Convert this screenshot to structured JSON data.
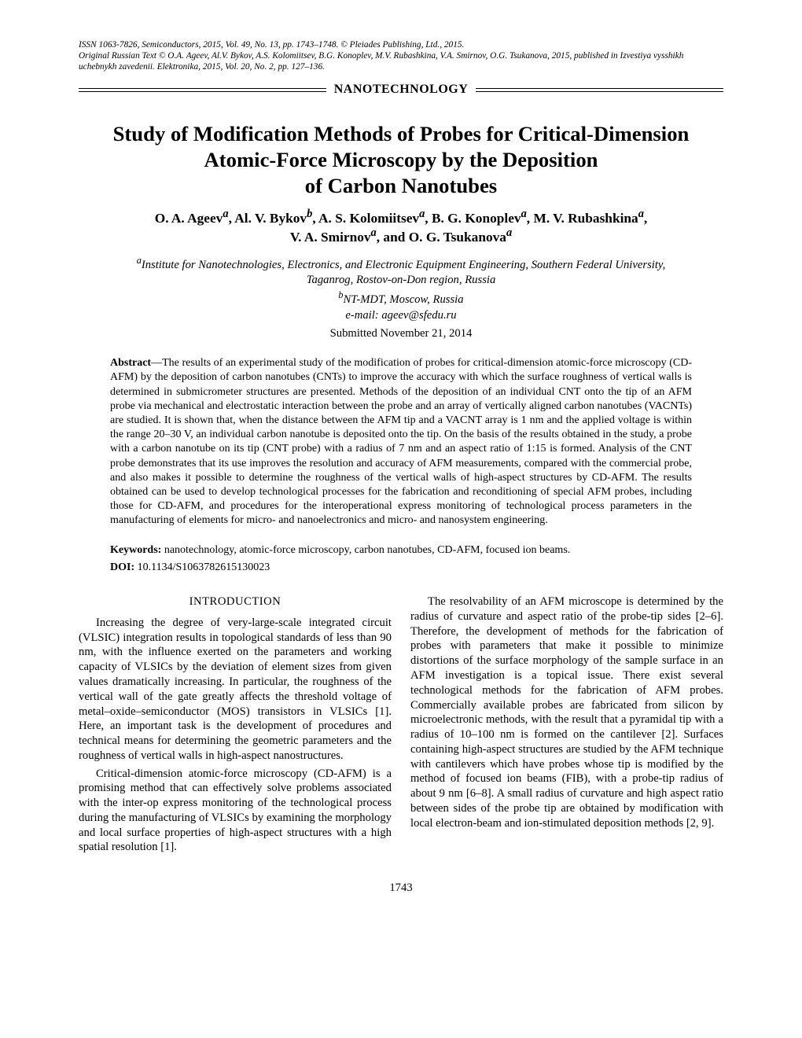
{
  "header": {
    "issn_line": "ISSN 1063-7826, Semiconductors, 2015, Vol. 49, No. 13, pp. 1743–1748. © Pleiades Publishing, Ltd., 2015.",
    "original_line": "Original Russian Text © O.A. Ageev, Al.V. Bykov, A.S. Kolomiitsev, B.G. Konoplev, M.V. Rubashkina, V.A. Smirnov, O.G. Tsukanova, 2015, published in Izvestiya vysshikh uchebnykh zavedenii. Elektronika, 2015, Vol. 20, No. 2, pp. 127–136.",
    "rubric": "NANOTECHNOLOGY"
  },
  "title_lines": {
    "l1": "Study of Modification Methods of Probes for Critical-Dimension",
    "l2": "Atomic-Force Microscopy by the Deposition",
    "l3": "of Carbon Nanotubes"
  },
  "authors_lines": {
    "a1_prefix": "O. A. Ageev",
    "a1_sup": "a",
    "a2_prefix": ", Al. V. Bykov",
    "a2_sup": "b",
    "a3_prefix": ", A. S. Kolomiitsev",
    "a3_sup": "a",
    "a4_prefix": ", B. G. Konoplev",
    "a4_sup": "a",
    "a5_prefix": ", M. V. Rubashkina",
    "a5_sup": "a",
    "a6_comma": ",",
    "a6_prefix": "V. A. Smirnov",
    "a6_sup": "a",
    "a7_prefix": ", and O. G. Tsukanova",
    "a7_sup": "a"
  },
  "affiliations": {
    "aff_a_sup": "a",
    "aff_a": "Institute for Nanotechnologies, Electronics, and Electronic Equipment Engineering, Southern Federal University,",
    "aff_a2": "Taganrog, Rostov-on-Don region, Russia",
    "aff_b_sup": "b",
    "aff_b": "NT-MDT, Moscow, Russia",
    "email": "e-mail: ageev@sfedu.ru",
    "submitted": "Submitted November 21, 2014"
  },
  "abstract": {
    "label": "Abstract",
    "text": "—The results of an experimental study of the modification of probes for critical-dimension atomic-force microscopy (CD-AFM) by the deposition of carbon nanotubes (CNTs) to improve the accuracy with which the surface roughness of vertical walls is determined in submicrometer structures are presented. Methods of the deposition of an individual CNT onto the tip of an AFM probe via mechanical and electrostatic interaction between the probe and an array of vertically aligned carbon nanotubes (VACNTs) are studied. It is shown that, when the distance between the AFM tip and a VACNT array is 1 nm and the applied voltage is within the range 20–30 V, an individual carbon nanotube is deposited onto the tip. On the basis of the results obtained in the study, a probe with a carbon nanotube on its tip (CNT probe) with a radius of 7 nm and an aspect ratio of 1:15 is formed. Analysis of the CNT probe demonstrates that its use improves the resolution and accuracy of AFM measurements, compared with the commercial probe, and also makes it possible to determine the roughness of the vertical walls of high-aspect structures by CD-AFM. The results obtained can be used to develop technological processes for the fabrication and reconditioning of special AFM probes, including those for CD-AFM, and procedures for the interoperational express monitoring of technological process parameters in the manufacturing of elements for micro- and nanoelectronics and micro- and nanosystem engineering."
  },
  "keywords": {
    "label": "Keywords:",
    "text": " nanotechnology, atomic-force microscopy, carbon nanotubes, CD-AFM, focused ion beams."
  },
  "doi": {
    "label": "DOI:",
    "value": " 10.1134/S1063782615130023"
  },
  "body": {
    "intro_heading": "INTRODUCTION",
    "left_p1": "Increasing the degree of very-large-scale integrated circuit (VLSIC) integration results in topological standards of less than 90 nm, with the influence exerted on the parameters and working capacity of VLSICs by the deviation of element sizes from given values dramatically increasing. In particular, the roughness of the vertical wall of the gate greatly affects the threshold voltage of metal–oxide–semiconductor (MOS) transistors in VLSICs [1]. Here, an important task is the development of procedures and technical means for determining the geometric parameters and the roughness of vertical walls in high-aspect nanostructures.",
    "left_p2": "Critical-dimension atomic-force microscopy (CD-AFM) is a promising method that can effectively solve problems associated with the inter-op express monitoring of the technological process during the manufacturing of VLSICs by examining the morphology and local surface properties of high-aspect structures with a high spatial resolution [1].",
    "right_p1": "The resolvability of an AFM microscope is determined by the radius of curvature and aspect ratio of the probe-tip sides [2–6]. Therefore, the development of methods for the fabrication of probes with parameters that make it possible to minimize distortions of the surface morphology of the sample surface in an AFM investigation is a topical issue. There exist several technological methods for the fabrication of AFM probes. Commercially available probes are fabricated from silicon by microelectronic methods, with the result that a pyramidal tip with a radius of 10–100 nm is formed on the cantilever [2]. Surfaces containing high-aspect structures are studied by the AFM technique with cantilevers which have probes whose tip is modified by the method of focused ion beams (FIB), with a probe-tip radius of about 9 nm [6–8]. A small radius of curvature and high aspect ratio between sides of the probe tip are obtained by modification with local electron-beam and ion-stimulated deposition methods [2, 9]."
  },
  "page_number": "1743"
}
